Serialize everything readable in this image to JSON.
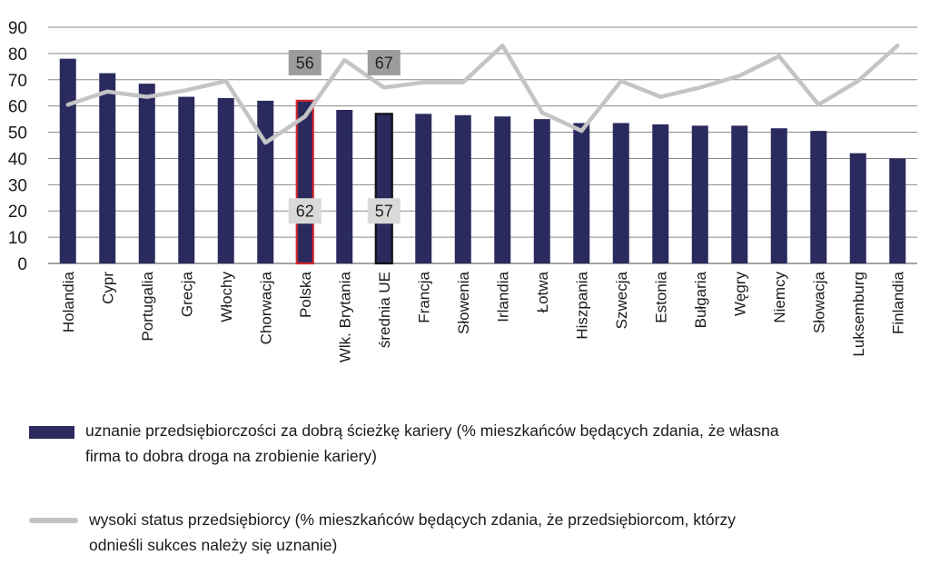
{
  "chart_data": {
    "type": "bar",
    "categories": [
      "Holandia",
      "Cypr",
      "Portugalia",
      "Grecja",
      "Włochy",
      "Chorwacja",
      "Polska",
      "Wlk. Brytania",
      "średnia UE",
      "Francja",
      "Słowenia",
      "Irlandia",
      "Łotwa",
      "Hiszpania",
      "Szwecja",
      "Estonia",
      "Bułgaria",
      "Węgry",
      "Niemcy",
      "Słowacja",
      "Luksemburg",
      "Finlandia"
    ],
    "ylim": [
      0,
      90
    ],
    "yticks": [
      0,
      10,
      20,
      30,
      40,
      50,
      60,
      70,
      80,
      90
    ],
    "grid": true,
    "series": [
      {
        "name": "uznanie przedsiębiorczości za dobrą ścieżkę kariery (% mieszkańców będących zdania, że własna firma to dobra droga na zrobienie kariery)",
        "kind": "bar",
        "color": "#2b2a5e",
        "values": [
          78,
          72.5,
          68.5,
          63.5,
          63,
          62,
          62,
          58.5,
          57,
          57,
          56.5,
          56,
          55,
          53.5,
          53.5,
          53,
          52.5,
          52.5,
          51.5,
          50.5,
          42,
          40
        ]
      },
      {
        "name": "wysoki status przedsiębiorcy (% mieszkańców będących zdania, że przedsiębiorcom, którzy odnieśli sukces należy się uznanie)",
        "kind": "line",
        "color": "#c4c4c4",
        "values": [
          60.5,
          65.5,
          63.5,
          66,
          69.5,
          46,
          56,
          77.5,
          67,
          69,
          69,
          83,
          57.5,
          50.5,
          69.5,
          63.5,
          67,
          71.5,
          79,
          60.5,
          69.5,
          83
        ]
      }
    ],
    "highlights": [
      {
        "category": "Polska",
        "bar_outline": "#d3262b",
        "bar_label": "62",
        "line_label": "56"
      },
      {
        "category": "średnia UE",
        "bar_outline": "#111111",
        "bar_label": "57",
        "line_label": "67"
      }
    ]
  },
  "legend": {
    "bar_text_line1": "uznanie przedsiębiorczości za dobrą ścieżkę kariery (% mieszkańców będących zdania, że własna",
    "bar_text_line2": "firma to dobra droga na zrobienie kariery)",
    "line_text_line1": "wysoki status przedsiębiorcy (% mieszkańców będących zdania, że przedsiębiorcom, którzy",
    "line_text_line2": "odnieśli sukces należy się uznanie)"
  }
}
